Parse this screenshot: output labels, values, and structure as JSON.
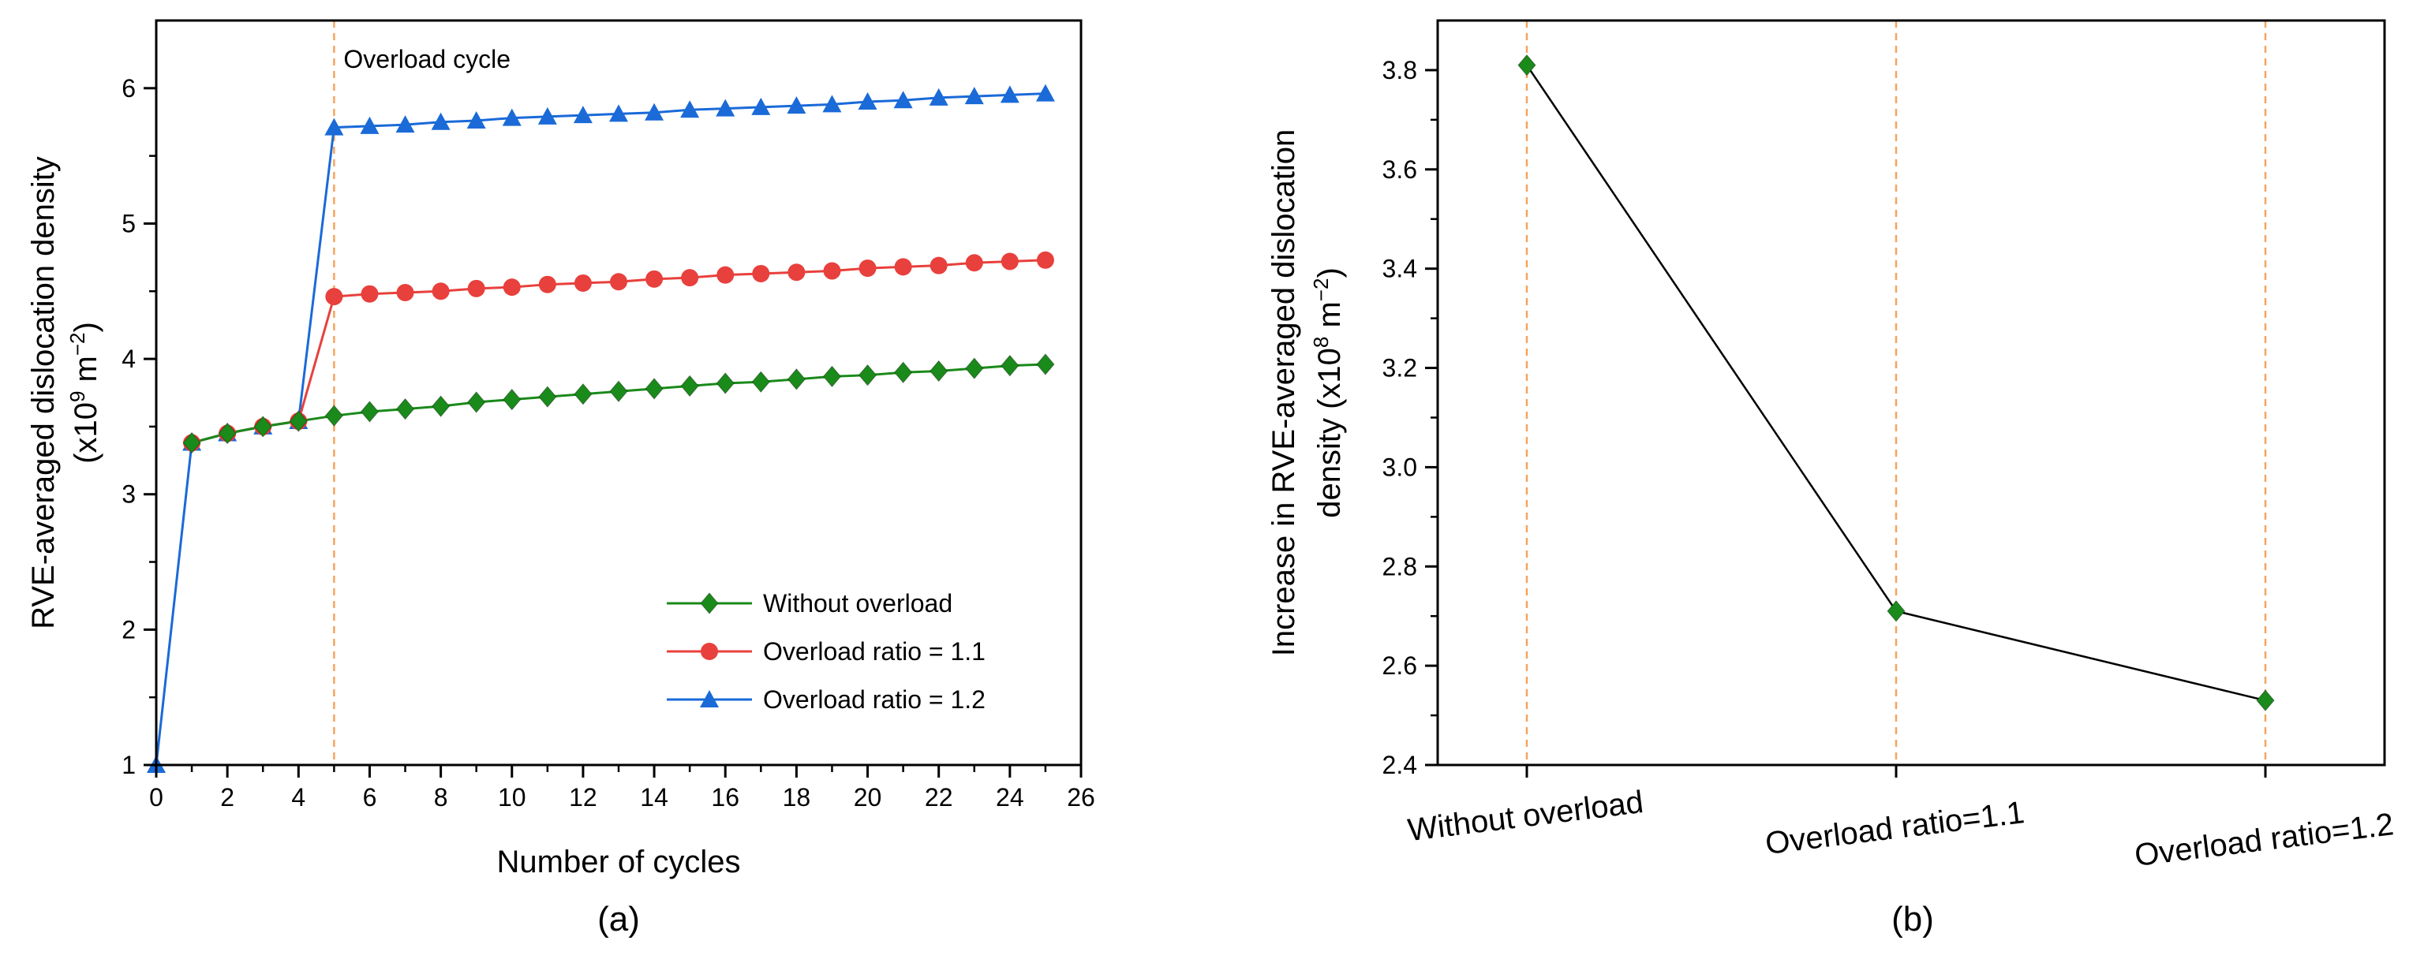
{
  "chart_data": [
    {
      "type": "line",
      "panel_label": "(a)",
      "xlabel": "Number of cycles",
      "ylabel_main": "RVE-averaged dislocation density",
      "ylabel_unit_prefix": "(x10",
      "ylabel_unit_exp": "9",
      "ylabel_unit_mid": " m",
      "ylabel_unit_exp2": "−2",
      "ylabel_unit_suffix": ")",
      "xlim": [
        0,
        26
      ],
      "ylim": [
        1,
        6.5
      ],
      "xticks": [
        0,
        2,
        4,
        6,
        8,
        10,
        12,
        14,
        16,
        18,
        20,
        22,
        24,
        26
      ],
      "yticks": [
        1,
        2,
        3,
        4,
        5,
        6
      ],
      "annotation": {
        "text": "Overload cycle",
        "x": 5
      },
      "legend_position": "bottom-right",
      "series": [
        {
          "name": "Without overload",
          "color": "#1a8a1a",
          "marker": "diamond",
          "x": [
            1,
            2,
            3,
            4,
            5,
            6,
            7,
            8,
            9,
            10,
            11,
            12,
            13,
            14,
            15,
            16,
            17,
            18,
            19,
            20,
            21,
            22,
            23,
            24,
            25
          ],
          "y": [
            3.38,
            3.45,
            3.5,
            3.54,
            3.58,
            3.61,
            3.63,
            3.65,
            3.68,
            3.7,
            3.72,
            3.74,
            3.76,
            3.78,
            3.8,
            3.82,
            3.83,
            3.85,
            3.87,
            3.88,
            3.9,
            3.91,
            3.93,
            3.95,
            3.96
          ]
        },
        {
          "name": "Overload ratio = 1.1",
          "color": "#e8403c",
          "marker": "circle",
          "x": [
            1,
            2,
            3,
            4,
            5,
            6,
            7,
            8,
            9,
            10,
            11,
            12,
            13,
            14,
            15,
            16,
            17,
            18,
            19,
            20,
            21,
            22,
            23,
            24,
            25
          ],
          "y": [
            3.38,
            3.45,
            3.5,
            3.54,
            4.46,
            4.48,
            4.49,
            4.5,
            4.52,
            4.53,
            4.55,
            4.56,
            4.57,
            4.59,
            4.6,
            4.62,
            4.63,
            4.64,
            4.65,
            4.67,
            4.68,
            4.69,
            4.71,
            4.72,
            4.73
          ]
        },
        {
          "name": "Overload ratio = 1.2",
          "color": "#1a6ad8",
          "marker": "triangle",
          "x": [
            0,
            1,
            2,
            3,
            4,
            5,
            6,
            7,
            8,
            9,
            10,
            11,
            12,
            13,
            14,
            15,
            16,
            17,
            18,
            19,
            20,
            21,
            22,
            23,
            24,
            25
          ],
          "y": [
            1.0,
            3.38,
            3.45,
            3.5,
            3.54,
            5.71,
            5.72,
            5.73,
            5.75,
            5.76,
            5.78,
            5.79,
            5.8,
            5.81,
            5.82,
            5.84,
            5.85,
            5.86,
            5.87,
            5.88,
            5.9,
            5.91,
            5.93,
            5.94,
            5.95,
            5.96
          ]
        }
      ]
    },
    {
      "type": "line",
      "panel_label": "(b)",
      "ylabel_line1": "Increase in RVE-averaged dislocation",
      "ylabel_line2_prefix": "density (x10",
      "ylabel_line2_exp": "8",
      "ylabel_line2_mid": " m",
      "ylabel_line2_exp2": "−2",
      "ylabel_line2_suffix": ")",
      "ylim": [
        2.4,
        3.9
      ],
      "yticks": [
        2.4,
        2.6,
        2.8,
        3.0,
        3.2,
        3.4,
        3.6,
        3.8
      ],
      "ytick_labels": [
        "2.4",
        "2.6",
        "2.8",
        "3.0",
        "3.2",
        "3.4",
        "3.6",
        "3.8"
      ],
      "categories": [
        "Without overload",
        "Overload ratio=1.1",
        "Overload ratio=1.2"
      ],
      "values": [
        3.81,
        2.71,
        2.53
      ],
      "line_color": "#000000",
      "marker_color": "#1a8a1a",
      "marker": "diamond"
    }
  ]
}
